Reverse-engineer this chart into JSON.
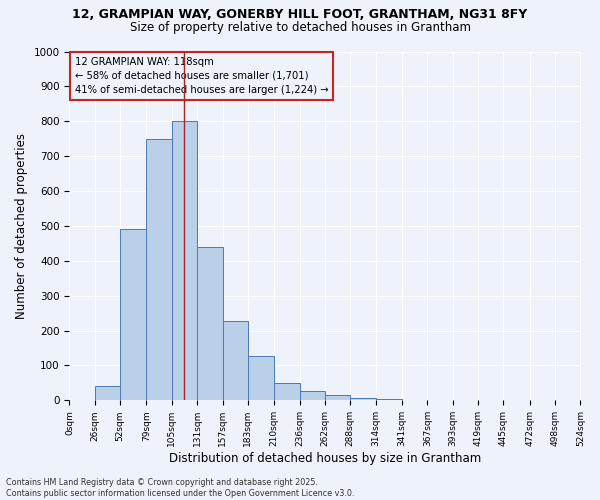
{
  "title_line1": "12, GRAMPIAN WAY, GONERBY HILL FOOT, GRANTHAM, NG31 8FY",
  "title_line2": "Size of property relative to detached houses in Grantham",
  "xlabel": "Distribution of detached houses by size in Grantham",
  "ylabel": "Number of detached properties",
  "bar_lefts": [
    0,
    26,
    52,
    79,
    105,
    131,
    157,
    183,
    210,
    236,
    262,
    288,
    314,
    341,
    367,
    393,
    419,
    445,
    472,
    498
  ],
  "bar_widths": [
    26,
    26,
    27,
    26,
    26,
    26,
    26,
    27,
    26,
    26,
    26,
    26,
    27,
    26,
    26,
    26,
    26,
    27,
    26,
    26
  ],
  "bar_values": [
    0,
    42,
    490,
    750,
    800,
    440,
    228,
    128,
    50,
    28,
    15,
    8,
    5,
    0,
    0,
    0,
    0,
    0,
    0,
    0
  ],
  "bin_edges": [
    0,
    26,
    52,
    79,
    105,
    131,
    157,
    183,
    210,
    236,
    262,
    288,
    314,
    341,
    367,
    393,
    419,
    445,
    472,
    498,
    524
  ],
  "tick_labels": [
    "0sqm",
    "26sqm",
    "52sqm",
    "79sqm",
    "105sqm",
    "131sqm",
    "157sqm",
    "183sqm",
    "210sqm",
    "236sqm",
    "262sqm",
    "288sqm",
    "314sqm",
    "341sqm",
    "367sqm",
    "393sqm",
    "419sqm",
    "445sqm",
    "472sqm",
    "498sqm",
    "524sqm"
  ],
  "bar_color": "#bad0e8",
  "bar_edge_color": "#4a7ab5",
  "vline_x": 118,
  "vline_color": "#aa2222",
  "annotation_text": "12 GRAMPIAN WAY: 118sqm\n← 58% of detached houses are smaller (1,701)\n41% of semi-detached houses are larger (1,224) →",
  "annotation_box_color": "#cc2222",
  "ylim": [
    0,
    1000
  ],
  "yticks": [
    0,
    100,
    200,
    300,
    400,
    500,
    600,
    700,
    800,
    900,
    1000
  ],
  "background_color": "#eef2fa",
  "grid_color": "#ffffff",
  "footer_line1": "Contains HM Land Registry data © Crown copyright and database right 2025.",
  "footer_line2": "Contains public sector information licensed under the Open Government Licence v3.0."
}
